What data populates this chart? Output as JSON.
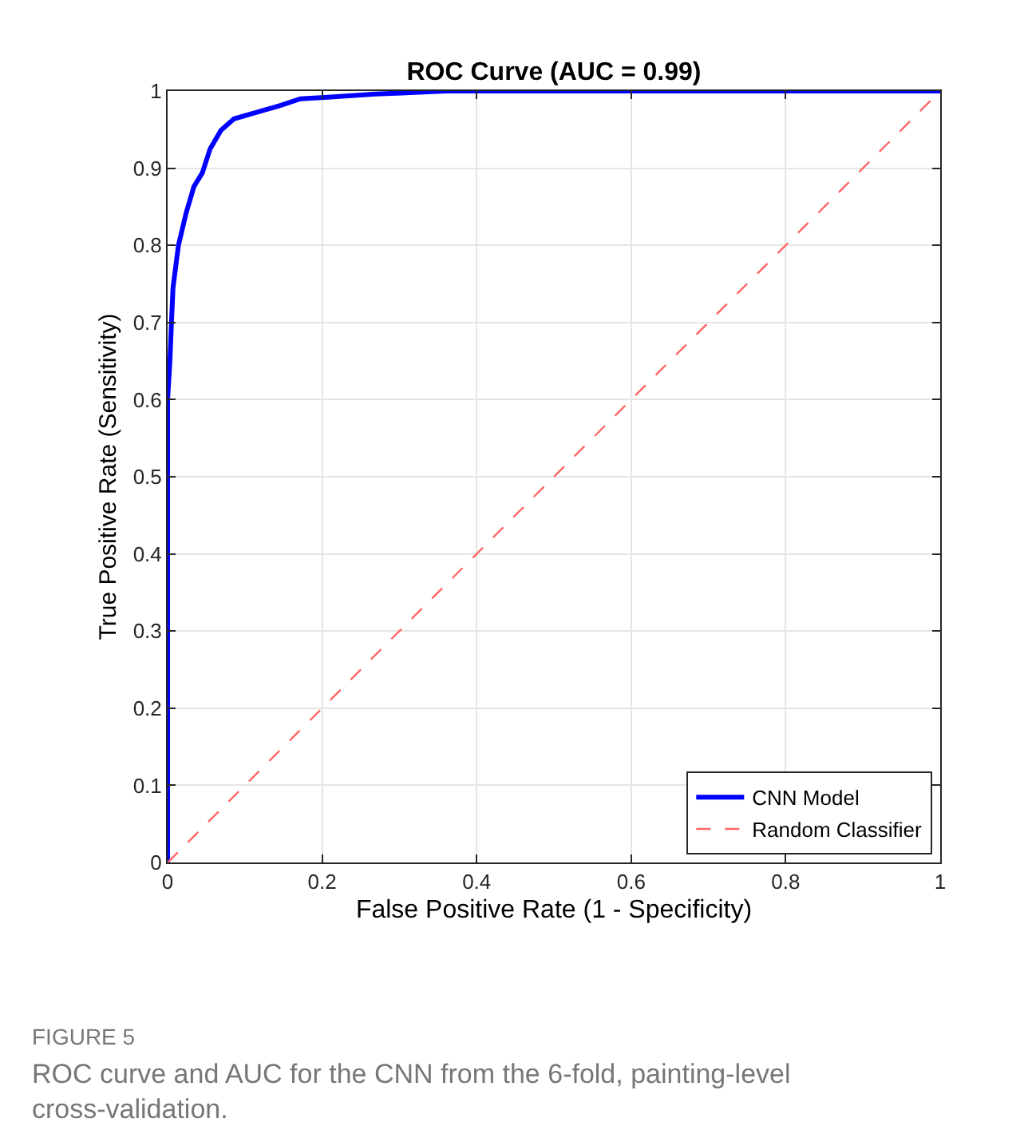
{
  "chart_data": {
    "type": "line",
    "title": "ROC Curve (AUC = 0.99)",
    "xlabel": "False Positive Rate (1 - Specificity)",
    "ylabel": "True Positive Rate (Sensitivity)",
    "series": [
      {
        "name": "CNN Model",
        "color": "#0000ff",
        "line_style": "solid",
        "x": [
          0,
          0,
          0.003,
          0.005,
          0.007,
          0.014,
          0.024,
          0.034,
          0.045,
          0.055,
          0.069,
          0.086,
          0.117,
          0.145,
          0.172,
          0.207,
          0.269,
          0.36,
          1
        ],
        "values": [
          0,
          0.6,
          0.65,
          0.7,
          0.745,
          0.8,
          0.842,
          0.876,
          0.894,
          0.925,
          0.949,
          0.964,
          0.973,
          0.981,
          0.99,
          0.992,
          0.996,
          1,
          1
        ]
      },
      {
        "name": "Random Classifier",
        "color": "#ff6666",
        "line_style": "dashed",
        "x": [
          0,
          1
        ],
        "values": [
          0,
          1
        ]
      }
    ],
    "xlim": [
      0,
      1
    ],
    "ylim": [
      0,
      1
    ],
    "xticks": [
      0,
      0.2,
      0.4,
      0.6,
      0.8,
      1
    ],
    "yticks": [
      0,
      0.1,
      0.2,
      0.3,
      0.4,
      0.5,
      0.6,
      0.7,
      0.8,
      0.9,
      1
    ],
    "grid": true,
    "legend": "bottom right",
    "marker": "none",
    "annotations": [
      "FIGURE 5",
      "ROC curve and AUC for the CNN from the 6-fold, painting-level cross-validation."
    ]
  }
}
